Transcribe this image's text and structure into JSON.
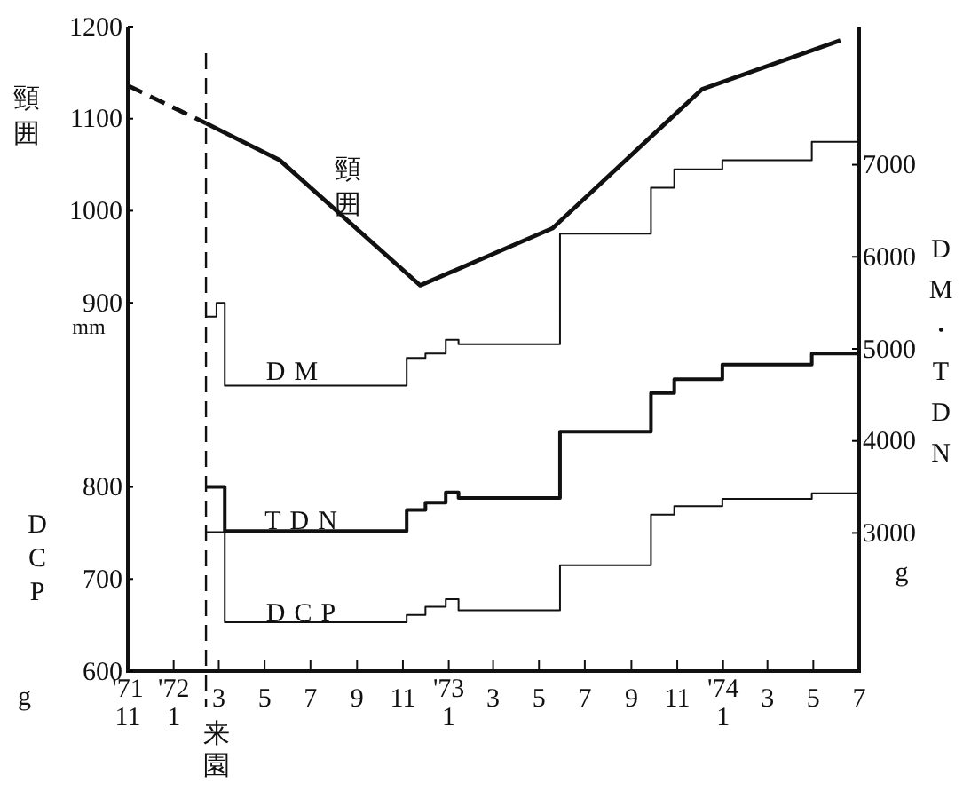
{
  "chart_data": {
    "type": "line",
    "ylabel": "頸囲",
    "y2label": "DM・TDN",
    "y3label": "DCP",
    "xlim": [
      "1971-11-01",
      "1974-07-01"
    ],
    "xticks": [
      {
        "value": "1971-11-01",
        "label": "'71\n11"
      },
      {
        "value": "1972-01-01",
        "label": "'72\n1"
      },
      {
        "value": "1972-03-01",
        "label": "\n3"
      },
      {
        "value": "1972-05-01",
        "label": "\n5"
      },
      {
        "value": "1972-07-01",
        "label": "\n7"
      },
      {
        "value": "1972-09-01",
        "label": "\n9"
      },
      {
        "value": "1972-11-01",
        "label": "\n11"
      },
      {
        "value": "1973-01-01",
        "label": "'73\n1"
      },
      {
        "value": "1973-03-01",
        "label": "\n3"
      },
      {
        "value": "1973-05-01",
        "label": "\n5"
      },
      {
        "value": "1973-07-01",
        "label": "\n7"
      },
      {
        "value": "1973-09-01",
        "label": "\n9"
      },
      {
        "value": "1973-11-01",
        "label": "\n11"
      },
      {
        "value": "1974-01-01",
        "label": "'74\n1"
      },
      {
        "value": "1974-03-01",
        "label": "\n3"
      },
      {
        "value": "1974-05-01",
        "label": "\n5"
      },
      {
        "value": "1974-07-01",
        "label": "\n7"
      }
    ],
    "ylim": [
      500,
      1200
    ],
    "yticks": [
      900,
      1000,
      1100,
      1200
    ],
    "y3lim": [
      600,
      1300
    ],
    "y3ticks": [
      600,
      700,
      800
    ],
    "y2lim": [
      1500,
      8500
    ],
    "y2ticks": [
      3000,
      4000,
      5000,
      6000,
      7000
    ],
    "ref_lines": [
      {
        "axis": "x",
        "value": "1972-02-13",
        "label": "来園",
        "line_style": "dashed"
      }
    ],
    "annotations": [
      "mm",
      "g",
      "g"
    ],
    "series": [
      {
        "color": "#111111",
        "line_style": "dashed",
        "x": [
          "1971-11-01",
          "1972-02-13"
        ],
        "values": [
          1136,
          1095
        ]
      },
      {
        "name": "頸囲",
        "color": "#111111",
        "x": [
          "1972-02-13",
          "1972-05-21",
          "1972-11-24",
          "1973-05-19",
          "1973-12-04",
          "1974-06-06"
        ],
        "values": [
          1095,
          1055,
          919,
          981,
          1132,
          1185
        ]
      },
      {
        "type": "step",
        "name": "DM",
        "color": "#111111",
        "axis": "y2",
        "x": [
          "1972-02-13",
          "1972-02-27",
          "1972-03-09",
          "1972-11-06",
          "1972-12-01",
          "1972-12-28",
          "1973-01-14",
          "1973-05-29",
          "1973-09-27",
          "1973-10-28",
          "1973-12-31",
          "1974-04-29",
          "1974-07-01"
        ],
        "values": [
          5350,
          5500,
          4600,
          4900,
          4950,
          5100,
          5050,
          6250,
          6750,
          6950,
          7050,
          7250,
          7250
        ]
      },
      {
        "type": "step",
        "name": "TDN",
        "color": "#111111",
        "axis": "y2",
        "x": [
          "1972-02-13",
          "1972-03-09",
          "1972-11-06",
          "1972-12-01",
          "1972-12-28",
          "1973-01-14",
          "1973-05-29",
          "1973-09-27",
          "1973-10-28",
          "1973-12-31",
          "1974-04-29",
          "1974-07-01"
        ],
        "values": [
          3500,
          3020,
          3250,
          3330,
          3440,
          3380,
          4100,
          4520,
          4670,
          4830,
          4950,
          4950
        ]
      },
      {
        "type": "step",
        "name": "DCP",
        "color": "#111111",
        "axis": "y3",
        "x": [
          "1972-02-13",
          "1972-03-09",
          "1972-11-06",
          "1972-12-01",
          "1972-12-28",
          "1973-01-14",
          "1973-05-29",
          "1973-09-27",
          "1973-10-28",
          "1973-12-31",
          "1974-04-29",
          "1974-07-01"
        ],
        "values": [
          751,
          653,
          661,
          670,
          678,
          666,
          715,
          770,
          779,
          787,
          793,
          793
        ]
      }
    ]
  }
}
